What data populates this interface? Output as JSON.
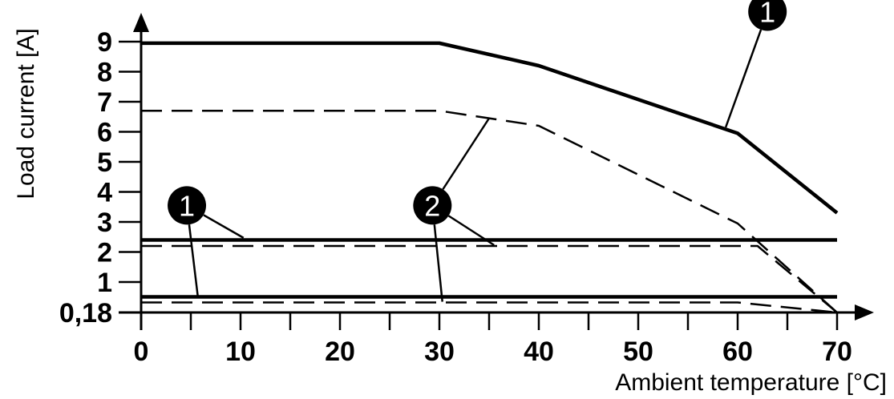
{
  "chart_data": {
    "type": "line",
    "xlabel": "Ambient temperature [°C]",
    "ylabel": "Load current [A]",
    "xlim": [
      0,
      70
    ],
    "ylim": [
      0.18,
      9
    ],
    "x_ticks": [
      "0",
      "10",
      "20",
      "30",
      "40",
      "50",
      "60",
      "70"
    ],
    "y_ticks": [
      "0,18",
      "1",
      "2",
      "3",
      "4",
      "5",
      "6",
      "7",
      "8",
      "9"
    ],
    "grid": false,
    "series": [
      {
        "style": "solid",
        "points": [
          [
            0,
            8.95
          ],
          [
            30,
            8.95
          ],
          [
            40,
            8.2
          ],
          [
            60,
            5.95
          ],
          [
            70,
            3.3
          ]
        ]
      },
      {
        "style": "dashed",
        "points": [
          [
            0,
            6.7
          ],
          [
            30,
            6.7
          ],
          [
            40,
            6.2
          ],
          [
            60,
            2.95
          ],
          [
            70,
            0.18
          ]
        ]
      },
      {
        "style": "solid",
        "points": [
          [
            0,
            2.4
          ],
          [
            70,
            2.4
          ]
        ]
      },
      {
        "style": "dashed",
        "points": [
          [
            0,
            2.2
          ],
          [
            62,
            2.2
          ],
          [
            70,
            0.18
          ]
        ]
      },
      {
        "style": "solid",
        "points": [
          [
            0,
            0.6
          ],
          [
            70,
            0.6
          ]
        ]
      },
      {
        "style": "dashed",
        "points": [
          [
            0,
            0.45
          ],
          [
            60,
            0.45
          ],
          [
            70,
            0.18
          ]
        ]
      }
    ],
    "callouts": [
      {
        "label": "1",
        "at": [
          63,
          10.0
        ],
        "targets": [
          [
            58.8,
            6.15
          ]
        ]
      },
      {
        "label": "1",
        "at": [
          4.6,
          3.55
        ],
        "targets": [
          [
            10.3,
            2.47
          ],
          [
            5.7,
            0.62
          ]
        ]
      },
      {
        "label": "2",
        "at": [
          29.3,
          3.55
        ],
        "targets": [
          [
            35,
            6.45
          ],
          [
            35.5,
            2.23
          ],
          [
            30.3,
            0.47
          ]
        ]
      }
    ]
  }
}
